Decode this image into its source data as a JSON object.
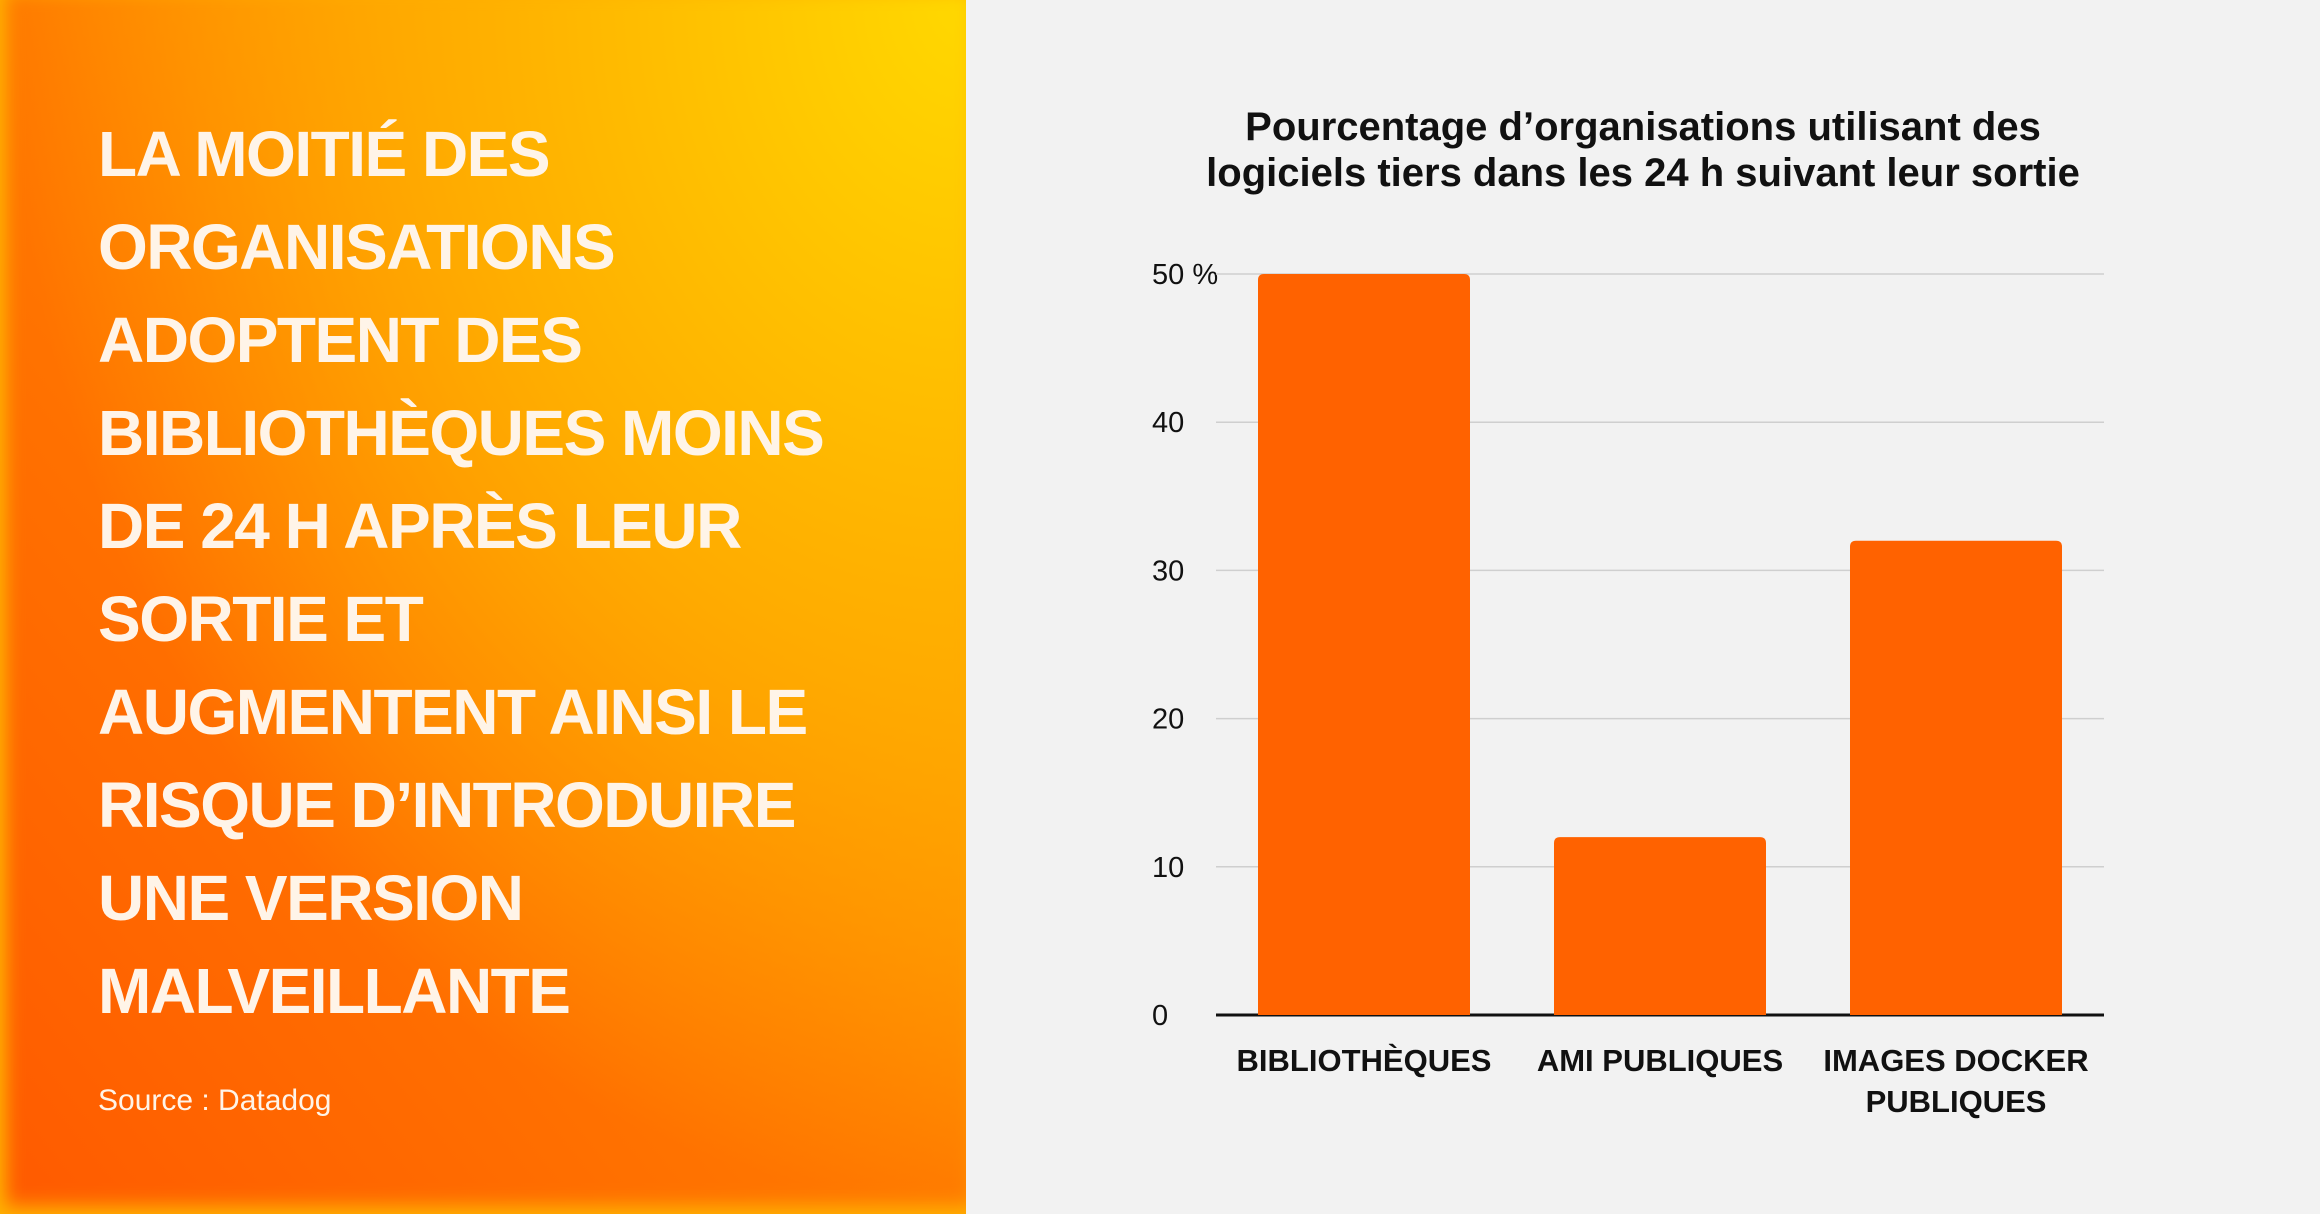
{
  "headline_lines": [
    "LA MOITIÉ DES",
    "ORGANISATIONS",
    "ADOPTENT DES",
    "BIBLIOTHÈQUES MOINS",
    "DE 24 H APRÈS LEUR",
    "SORTIE ET",
    "AUGMENTENT AINSI LE",
    "RISQUE D’INTRODUIRE",
    "UNE VERSION",
    "MALVEILLANTE"
  ],
  "source": "Source : Datadog",
  "chart_data": {
    "type": "bar",
    "title_lines": [
      "Pourcentage d’organisations utilisant des",
      "logiciels tiers dans les 24 h suivant leur sortie"
    ],
    "categories": [
      "BIBLIOTHÈQUES",
      "AMI PUBLIQUES",
      "IMAGES DOCKER PUBLIQUES"
    ],
    "values": [
      50,
      12,
      32
    ],
    "color": "#ff6200",
    "ylim": [
      0,
      50
    ],
    "yticks": [
      0,
      10,
      20,
      30,
      40,
      {
        "value": 50,
        "label": "50 %"
      }
    ],
    "grid": true
  }
}
